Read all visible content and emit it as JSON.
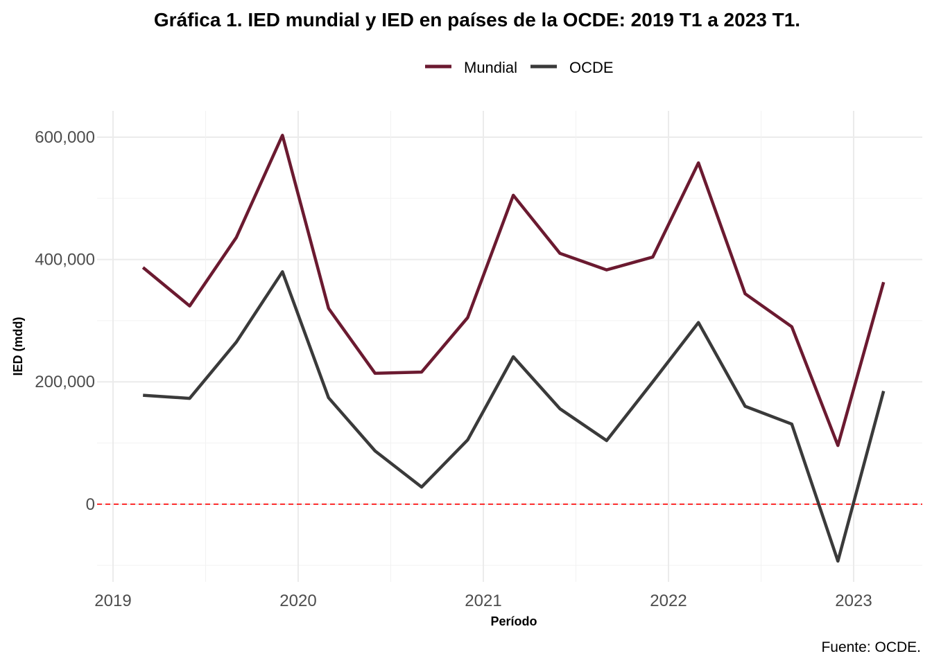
{
  "chart_data": {
    "type": "line",
    "title": "Gráfica 1. IED mundial y IED en países de la OCDE: 2019 T1 a 2023 T1.",
    "xlabel": "Período",
    "ylabel": "IED (mdd)",
    "caption": "Fuente: OCDE.",
    "legend_position": "top",
    "grid": true,
    "x": [
      "2019-03-01",
      "2019-06-01",
      "2019-09-01",
      "2019-12-01",
      "2020-03-01",
      "2020-06-01",
      "2020-09-01",
      "2020-12-01",
      "2021-03-01",
      "2021-06-01",
      "2021-09-01",
      "2021-12-01",
      "2022-03-01",
      "2022-06-01",
      "2022-09-01",
      "2022-12-01",
      "2023-03-01"
    ],
    "x_ticks": [
      "2019",
      "2020",
      "2021",
      "2022",
      "2023"
    ],
    "y_ticks": [
      0,
      200000,
      400000,
      600000
    ],
    "y_tick_labels": [
      "0",
      "200,000",
      "400,000",
      "600,000"
    ],
    "ylim": [
      -127000,
      643000
    ],
    "reference_line": {
      "y": 0,
      "color": "#ff0000",
      "style": "dashed"
    },
    "series": [
      {
        "name": "Mundial",
        "color": "#6b1a30",
        "values": [
          387000,
          324000,
          436000,
          603000,
          320000,
          214000,
          216000,
          305000,
          505000,
          410000,
          383000,
          404000,
          558000,
          344000,
          290000,
          96000,
          363000
        ]
      },
      {
        "name": "OCDE",
        "color": "#3a3a3a",
        "values": [
          178000,
          173000,
          265000,
          380000,
          174000,
          87000,
          28000,
          105000,
          241000,
          156000,
          104000,
          200000,
          297000,
          160000,
          131000,
          -93000,
          185000
        ]
      }
    ]
  }
}
